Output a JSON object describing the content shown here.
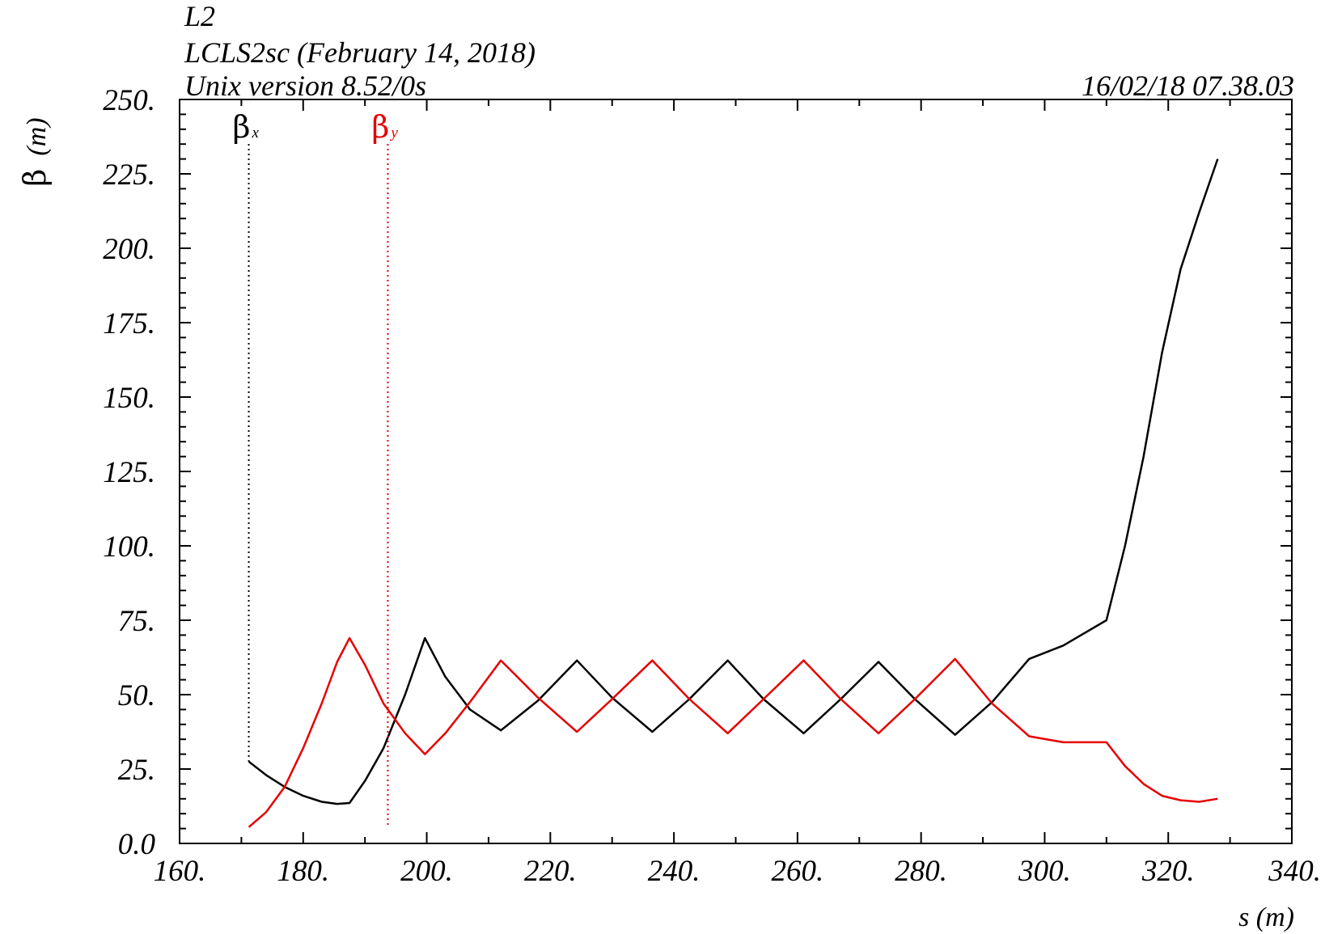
{
  "header": {
    "line1": "L2",
    "line2": "LCLS2sc (February 14, 2018)",
    "line3": "Unix version 8.52/0s",
    "timestamp": "16/02/18  07.38.03"
  },
  "chart_data": {
    "type": "line",
    "xlabel": "s (m)",
    "ylabel_symbol": "β",
    "ylabel_unit": "(m)",
    "xlim": [
      160,
      340
    ],
    "ylim": [
      0,
      250
    ],
    "x_ticks": [
      "160.",
      "180.",
      "200.",
      "220.",
      "240.",
      "260.",
      "280.",
      "300.",
      "320.",
      "340."
    ],
    "y_ticks": [
      "0.0",
      "25.",
      "50.",
      "75.",
      "100.",
      "125.",
      "150.",
      "175.",
      "200.",
      "225.",
      "250."
    ],
    "grid": false,
    "legend": [
      {
        "symbol": "β",
        "sub": "x",
        "color": "#000000",
        "marker_s": 171.2
      },
      {
        "symbol": "β",
        "sub": "y",
        "color": "#e60000",
        "marker_s": 193.7
      }
    ],
    "series": [
      {
        "color": "#000000",
        "x": [
          171.2,
          174,
          177,
          180,
          183,
          185.5,
          187.5,
          190,
          193,
          196.5,
          199.7,
          203,
          207,
          212,
          218,
          224.3,
          230,
          236.5,
          242.5,
          248.7,
          254.5,
          261,
          267,
          273.1,
          279,
          285.5,
          291.5,
          297.5,
          303,
          310,
          313,
          316,
          319,
          322,
          325,
          328
        ],
        "y": [
          27.5,
          23,
          19,
          16,
          14,
          13.3,
          13.6,
          21,
          32,
          50,
          69,
          56,
          45,
          38,
          48,
          61.5,
          49,
          37.5,
          48.5,
          61.5,
          48.5,
          37,
          48.5,
          61,
          48.5,
          36.5,
          47.5,
          62,
          66.5,
          75,
          100,
          130,
          165,
          193,
          212,
          230
        ]
      },
      {
        "color": "#e60000",
        "x": [
          171.2,
          174,
          177,
          180,
          183,
          185.5,
          187.5,
          190,
          193,
          196.5,
          199.7,
          203,
          207,
          212,
          218,
          224.3,
          230,
          236.5,
          242.5,
          248.7,
          254.5,
          261,
          267,
          273.1,
          279,
          285.5,
          291.5,
          297.5,
          303,
          310,
          313,
          316,
          319,
          322,
          325,
          328
        ],
        "y": [
          5.5,
          10.5,
          19,
          32,
          47,
          61,
          69,
          60,
          47,
          37,
          30,
          37,
          47.5,
          61.5,
          49,
          37.5,
          48.5,
          61.5,
          48.5,
          37,
          48.5,
          61.5,
          48.5,
          37,
          48.5,
          62,
          47,
          36,
          34,
          34,
          26,
          20,
          16,
          14.5,
          14,
          15
        ]
      }
    ]
  }
}
